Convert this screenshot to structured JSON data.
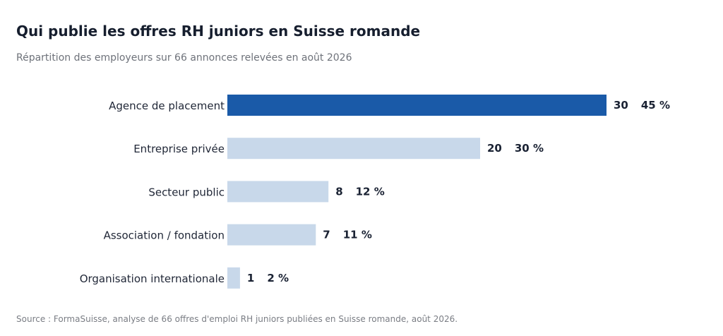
{
  "header": {
    "title": "Qui publie les offres RH juniors en Suisse romande",
    "subtitle": "Répartition des employeurs sur 66 annonces relevées en août 2026"
  },
  "footer": {
    "source": "Source : FormaSuisse, analyse de 66 offres d'emploi RH juniors publiées en Suisse romande, août 2026."
  },
  "chart_data": {
    "type": "bar",
    "orientation": "horizontal",
    "categories": [
      "Agence de placement",
      "Entreprise privée",
      "Secteur public",
      "Association / fondation",
      "Organisation internationale"
    ],
    "values": [
      30,
      20,
      8,
      7,
      1
    ],
    "percent_labels": [
      "45 %",
      "30 %",
      "12 %",
      "11 %",
      "2 %"
    ],
    "xlim": [
      0,
      30
    ],
    "grid": false,
    "legend": "none",
    "highlight_index": 0,
    "colors": {
      "highlight": "#1a5aa8",
      "default": "#c8d8ea"
    }
  }
}
